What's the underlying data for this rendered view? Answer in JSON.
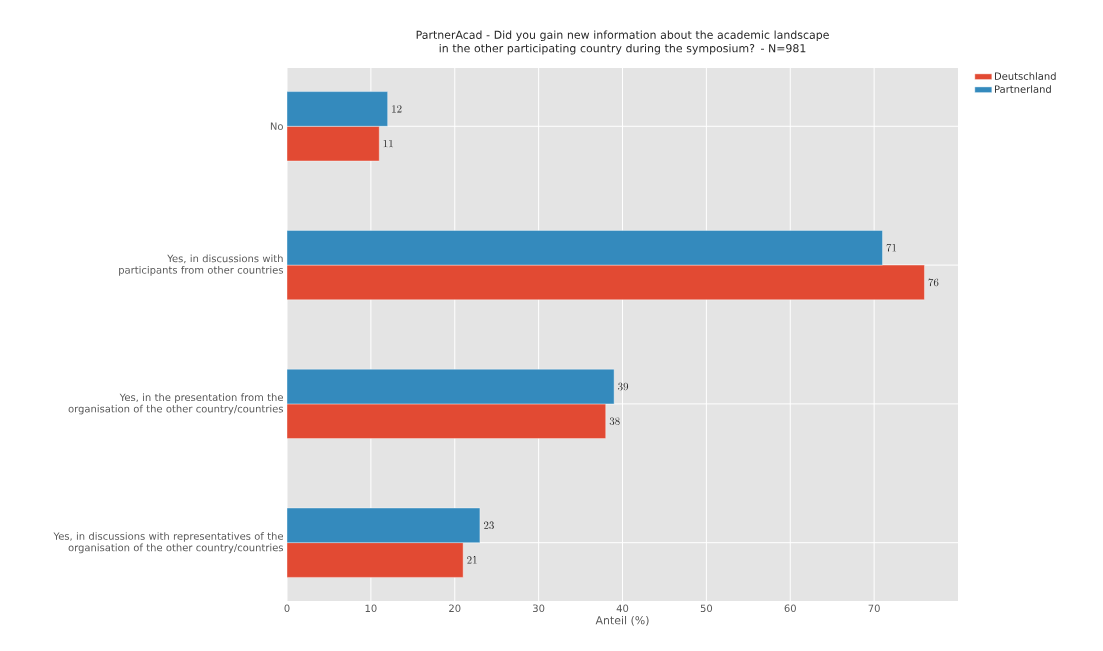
{
  "chart_data": {
    "type": "bar",
    "orientation": "horizontal",
    "title": "PartnerAcad - Did you gain new information about the academic landscape in the other participating country during the symposium? - N=981",
    "xlabel": "Anteil (%)",
    "categories": [
      "No",
      "Yes, in discussions with participants from other countries",
      "Yes, in the presentation from the organisation of the other country/countries",
      "Yes, in discussions with representatives of the organisation of the other country/countries"
    ],
    "series": [
      {
        "name": "Deutschland",
        "color": "#e24a33",
        "values": [
          11,
          76,
          38,
          21
        ]
      },
      {
        "name": "Partnerland",
        "color": "#348abd",
        "values": [
          12,
          71,
          39,
          23
        ]
      }
    ],
    "xlim": [
      0,
      80
    ],
    "xticks": [
      0,
      10,
      20,
      30,
      40,
      50,
      60,
      70
    ],
    "grid": true,
    "legend": "top right",
    "data_labels": true
  }
}
